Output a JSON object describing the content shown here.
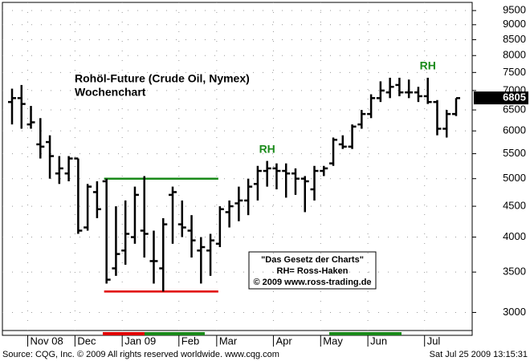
{
  "chart_data": {
    "type": "ohlc",
    "title": "Rohöl-Future (Crude Oil, Nymex)",
    "subtitle": "Wochenchart",
    "categories": [
      null,
      null,
      "Nov 08",
      null,
      null,
      null,
      null,
      "Dec",
      null,
      null,
      null,
      null,
      "Jan 09",
      null,
      null,
      null,
      null,
      null,
      "Feb",
      null,
      null,
      null,
      "Mar",
      null,
      null,
      null,
      null,
      null,
      "Apr",
      null,
      null,
      null,
      null,
      "May",
      null,
      null,
      null,
      null,
      "Jun",
      null,
      null,
      null,
      null,
      null,
      "Jul",
      null,
      null,
      null
    ],
    "series": [
      {
        "name": null,
        "color": "#000000",
        "open": [
          6700,
          6800,
          6150,
          5700,
          5750,
          5100,
          5100,
          5400,
          4150,
          4750,
          4950,
          3550,
          3800,
          4000,
          4100,
          3650,
          3550,
          4700,
          4200,
          4100,
          3800,
          3800,
          3900,
          4400,
          4550,
          4600,
          4900,
          5150,
          5200,
          5150,
          5100,
          5000,
          4800,
          5150,
          5300,
          5700,
          5650,
          6150,
          6400,
          6800,
          6950,
          7150,
          6950,
          6950,
          6850,
          6700,
          6050,
          6400
        ],
        "high": [
          7050,
          7150,
          6600,
          6300,
          5900,
          5450,
          5450,
          5400,
          4900,
          4950,
          5000,
          4500,
          4600,
          4850,
          5050,
          4100,
          4300,
          4850,
          4600,
          4350,
          4000,
          4050,
          4500,
          4600,
          4850,
          5000,
          5250,
          5350,
          5300,
          5300,
          5200,
          5050,
          5250,
          5250,
          5850,
          5900,
          6150,
          6500,
          6900,
          7250,
          7350,
          7350,
          7300,
          7100,
          7350,
          6750,
          6500,
          6800
        ],
        "low": [
          6150,
          6050,
          6050,
          5400,
          5000,
          4900,
          4950,
          4050,
          4100,
          4300,
          3350,
          3450,
          3600,
          3900,
          3700,
          3350,
          3250,
          3900,
          4000,
          3700,
          3350,
          3450,
          3850,
          4150,
          4250,
          4350,
          4600,
          4850,
          4800,
          4650,
          4700,
          4400,
          4600,
          5050,
          5250,
          5600,
          5600,
          6050,
          6300,
          6700,
          6800,
          6850,
          6800,
          6700,
          6650,
          5900,
          5850,
          6350
        ],
        "close": [
          6800,
          6650,
          6200,
          5650,
          5450,
          5200,
          5400,
          4100,
          4850,
          4450,
          3400,
          3750,
          4050,
          4700,
          4050,
          3650,
          4200,
          4750,
          4150,
          3950,
          3850,
          3950,
          4450,
          4500,
          4600,
          4850,
          5150,
          5200,
          5150,
          5100,
          5000,
          4950,
          5150,
          5200,
          5800,
          5650,
          6100,
          6400,
          6800,
          7000,
          7100,
          6950,
          6950,
          6850,
          6700,
          6050,
          6400,
          6800
        ]
      }
    ],
    "ylim": [
      2800,
      9800
    ],
    "yticks": [
      3000,
      3500,
      4000,
      4500,
      5000,
      5500,
      6000,
      6500,
      7000,
      7500,
      8000,
      8500,
      9000,
      9500
    ],
    "log_scale": true,
    "grid": true,
    "last_price": 6805,
    "levels": [
      {
        "value": 5000,
        "color": "#1a8a1a"
      },
      {
        "value": 3250,
        "color": "#e00000"
      }
    ],
    "annotations": [
      {
        "text": "RH",
        "index": 27,
        "value": 5350
      },
      {
        "text": "RH",
        "index": 44,
        "value": 7350
      }
    ],
    "note": [
      "\"Das Gesetz der Charts\"",
      "RH= Ross-Haken",
      "© 2009 www.ross-trading.de"
    ],
    "source": "Source: CQG, Inc. © 2009 All rights reserved worldwide. www.cqg.com",
    "timestamp": "Sat Jul 25 2009 13:15:31"
  }
}
